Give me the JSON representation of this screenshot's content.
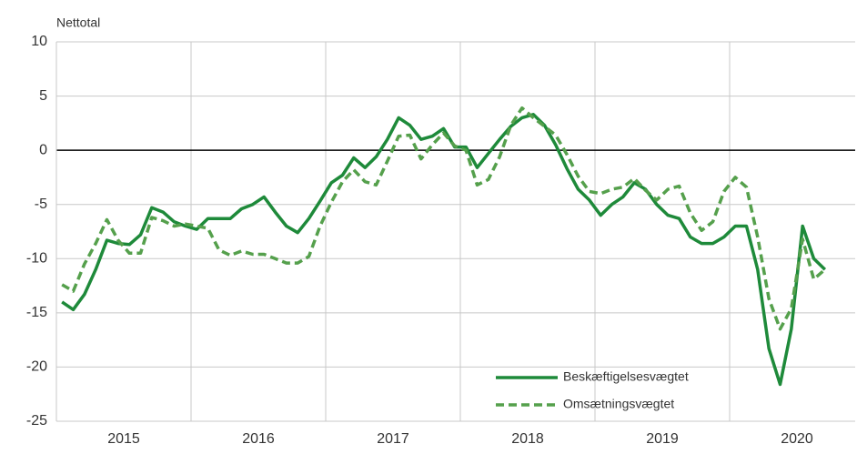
{
  "chart_data": {
    "type": "line",
    "ylabel": "Nettotal",
    "categories": [
      null,
      null,
      null,
      null,
      null,
      "2015",
      null,
      null,
      null,
      null,
      null,
      null,
      null,
      null,
      null,
      null,
      null,
      "2016",
      null,
      null,
      null,
      null,
      null,
      null,
      null,
      null,
      null,
      null,
      null,
      "2017",
      null,
      null,
      null,
      null,
      null,
      null,
      null,
      null,
      null,
      null,
      null,
      "2018",
      null,
      null,
      null,
      null,
      null,
      null,
      null,
      null,
      null,
      null,
      null,
      "2019",
      null,
      null,
      null,
      null,
      null,
      null,
      null,
      null,
      null,
      null,
      null,
      "2020",
      null,
      null,
      null
    ],
    "series": [
      {
        "name": "Beskæftigelsesvægtet",
        "color": "#1e8a3a",
        "dash": false,
        "values": [
          -14,
          -14.7,
          -13.3,
          -11,
          -8.3,
          -8.6,
          -8.7,
          -7.8,
          -5.3,
          -5.7,
          -6.6,
          -7,
          -7.3,
          -6.3,
          -6.3,
          -6.3,
          -5.4,
          -5,
          -4.3,
          -5.7,
          -7,
          -7.6,
          -6.3,
          -4.7,
          -3,
          -2.3,
          -0.7,
          -1.6,
          -0.6,
          1,
          3,
          2.3,
          1,
          1.3,
          2,
          0.3,
          0.3,
          -1.6,
          -0.3,
          1,
          2.2,
          3,
          3.3,
          2.3,
          0.5,
          -1.7,
          -3.6,
          -4.6,
          -6,
          -5,
          -4.3,
          -3,
          -3.6,
          -5,
          -6,
          -6.3,
          -8,
          -8.6,
          -8.6,
          -8,
          -7,
          -7,
          -11,
          -18.3,
          -21.6,
          -16.5,
          -7,
          -10,
          -11
        ]
      },
      {
        "name": "Omsætningsvægtet",
        "color": "#55a04c",
        "dash": true,
        "values": [
          -12.4,
          -13,
          -10.5,
          -8.6,
          -6.4,
          -8.3,
          -9.5,
          -9.5,
          -6.2,
          -6.5,
          -7,
          -6.8,
          -7,
          -7.2,
          -9.2,
          -9.7,
          -9.3,
          -9.6,
          -9.6,
          -10,
          -10.4,
          -10.4,
          -9.8,
          -7,
          -4.8,
          -2.9,
          -1.8,
          -2.9,
          -3.2,
          -1,
          1.3,
          1.4,
          -0.8,
          0.5,
          1.6,
          0.4,
          0,
          -3.2,
          -2.7,
          -0.6,
          2.3,
          3.9,
          3,
          2.2,
          1.4,
          -0.4,
          -2.4,
          -3.8,
          -4,
          -3.6,
          -3.4,
          -2.6,
          -3.7,
          -4.6,
          -3.6,
          -3.3,
          -5.8,
          -7.4,
          -6.6,
          -3.8,
          -2.5,
          -3.4,
          -8,
          -13.7,
          -16.5,
          -14.6,
          -8.2,
          -11.9,
          -11
        ]
      }
    ],
    "ylim": [
      -25,
      10
    ],
    "yticks": [
      -25,
      -20,
      -15,
      -10,
      -5,
      0,
      5,
      10
    ],
    "grid": true,
    "legend": "lower right"
  }
}
